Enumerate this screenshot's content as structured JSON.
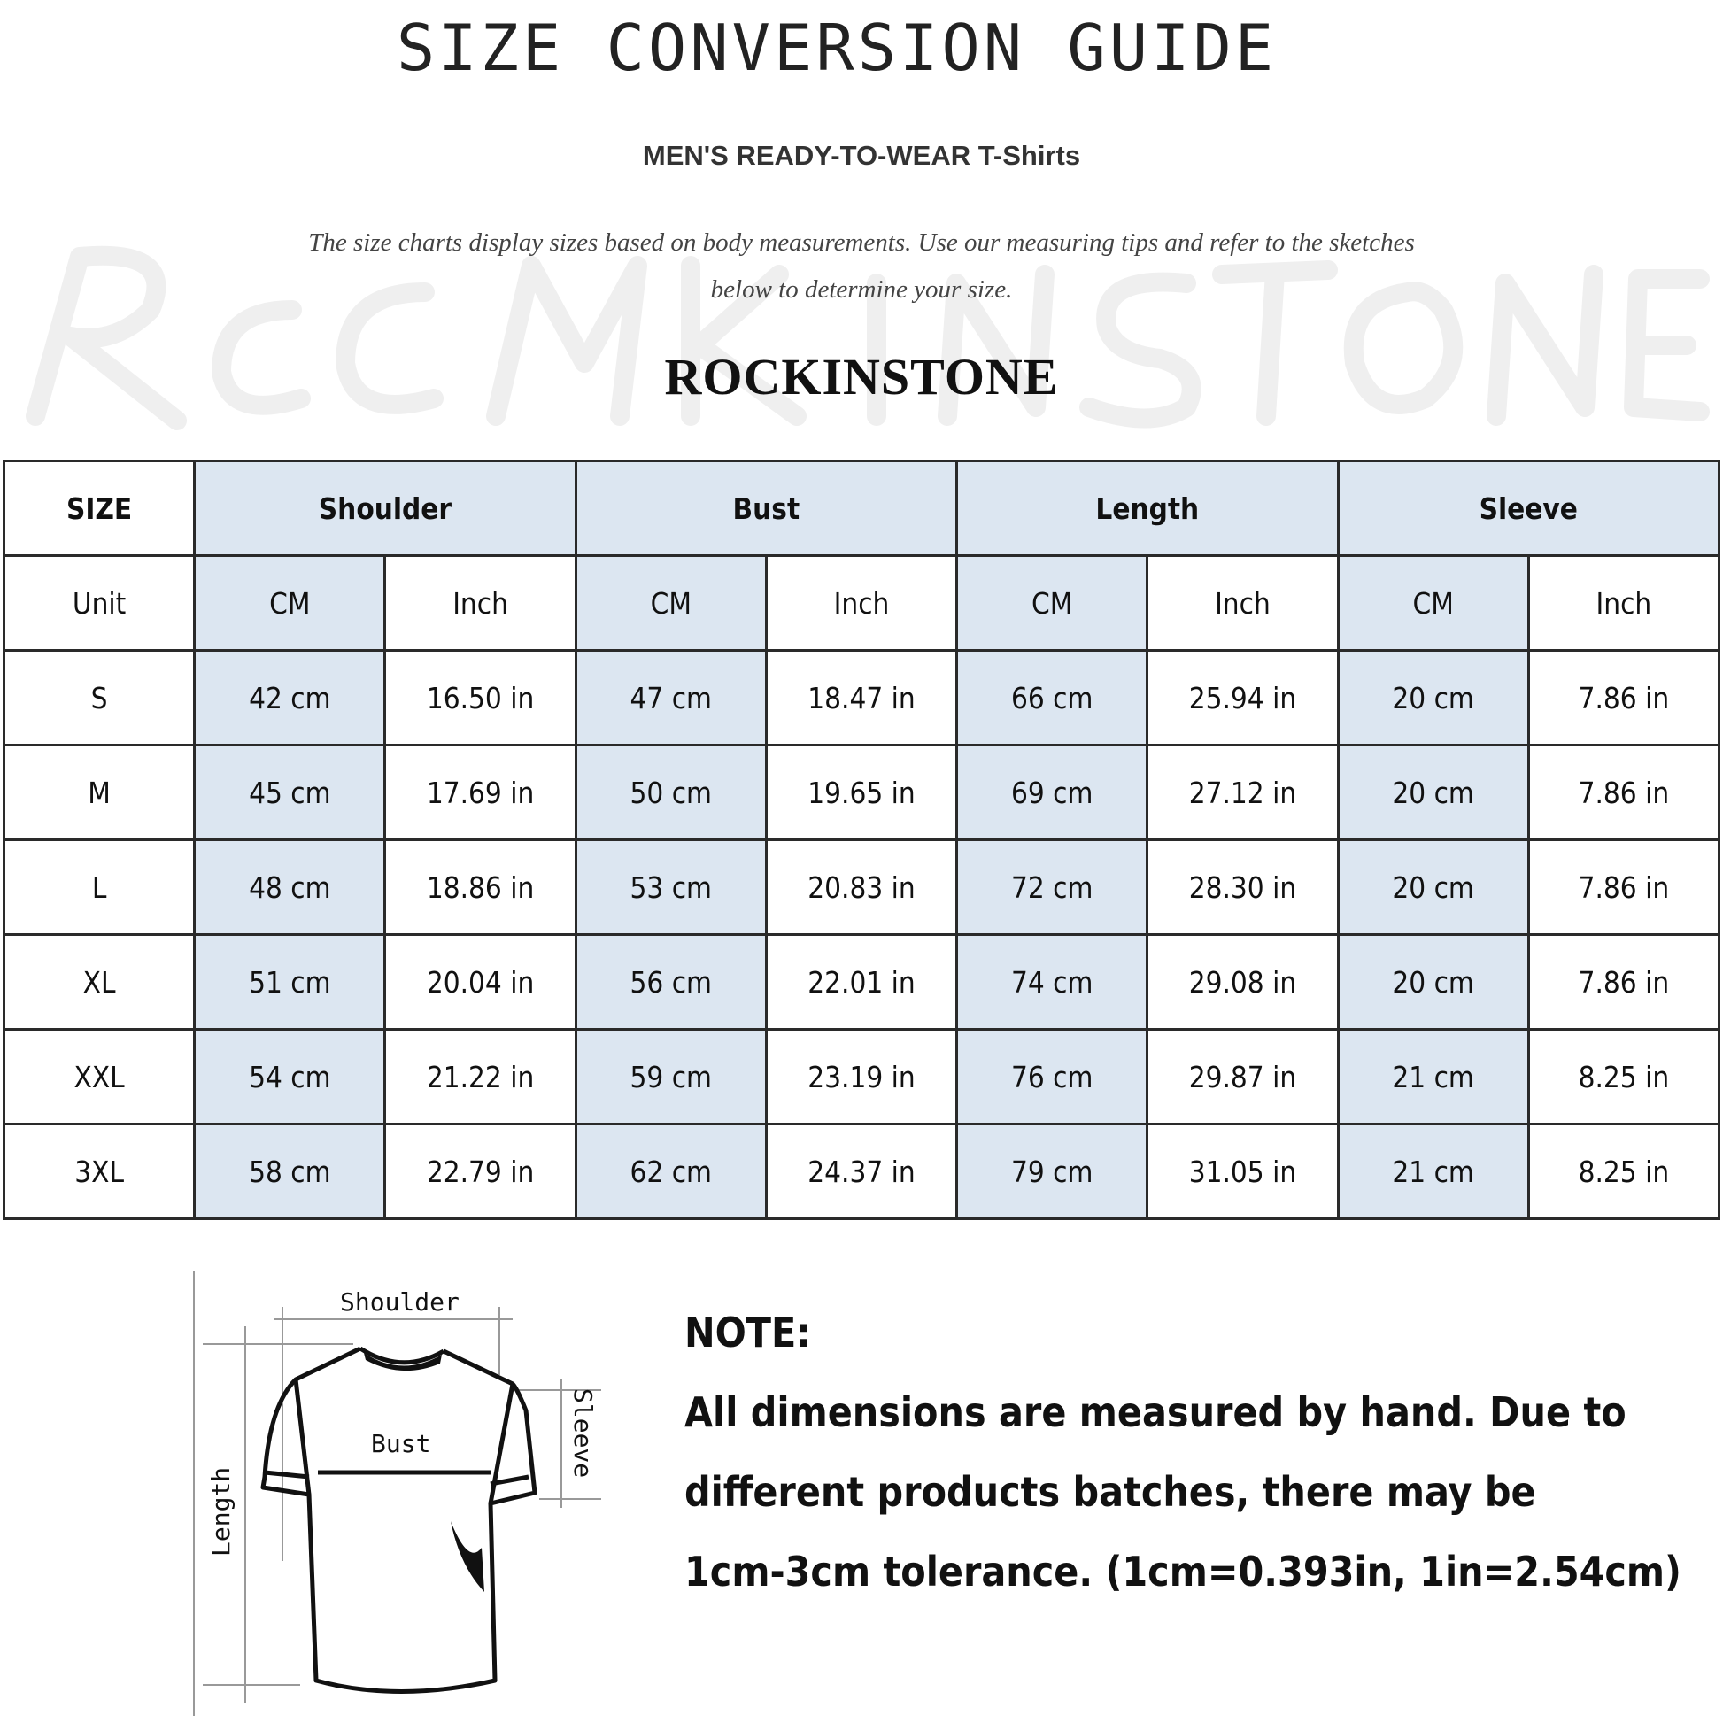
{
  "header": {
    "title": "SIZE CONVERSION GUIDE",
    "subtitle": "MEN'S READY-TO-WEAR T-Shirts",
    "description_line1": "The size charts display sizes based on body measurements. Use our measuring tips and refer to the sketches",
    "description_line2": "below to determine your size.",
    "watermark": "ROCKINSTONE",
    "brand": "ROCKINSTONE"
  },
  "table": {
    "size_header": "SIZE",
    "groups": [
      "Shoulder",
      "Bust",
      "Length",
      "Sleeve"
    ],
    "unit_label": "Unit",
    "units": [
      "CM",
      "Inch",
      "CM",
      "Inch",
      "CM",
      "Inch",
      "CM",
      "Inch"
    ],
    "rows": [
      {
        "size": "S",
        "cells": [
          "42 cm",
          "16.50 in",
          "47 cm",
          "18.47  in",
          "66 cm",
          "25.94  in",
          "20 cm",
          "7.86  in"
        ]
      },
      {
        "size": "M",
        "cells": [
          "45 cm",
          "17.69  in",
          "50 cm",
          "19.65  in",
          "69 cm",
          "27.12  in",
          "20 cm",
          "7.86  in"
        ]
      },
      {
        "size": "L",
        "cells": [
          "48 cm",
          "18.86  in",
          "53 cm",
          "20.83  in",
          "72 cm",
          "28.30  in",
          "20 cm",
          "7.86  in"
        ]
      },
      {
        "size": "XL",
        "cells": [
          "51 cm",
          "20.04  in",
          "56 cm",
          "22.01  in",
          "74 cm",
          "29.08  in",
          "20 cm",
          "7.86  in"
        ]
      },
      {
        "size": "XXL",
        "cells": [
          "54 cm",
          "21.22  in",
          "59 cm",
          "23.19  in",
          "76 cm",
          "29.87  in",
          "21 cm",
          "8.25  in"
        ]
      },
      {
        "size": "3XL",
        "cells": [
          "58 cm",
          "22.79  in",
          "62 cm",
          "24.37  in",
          "79 cm",
          "31.05  in",
          "21 cm",
          "8.25  in"
        ]
      }
    ],
    "accent_color": "#dce6f1"
  },
  "sketch": {
    "labels": {
      "shoulder": "Shoulder",
      "bust": "Bust",
      "length": "Length",
      "sleeve": "Sleeve"
    }
  },
  "note": {
    "title": "NOTE:",
    "lines": [
      "All dimensions are measured by hand. Due to",
      "different products batches, there may be",
      "1cm-3cm tolerance. (1cm=0.393in, 1in=2.54cm)"
    ]
  }
}
